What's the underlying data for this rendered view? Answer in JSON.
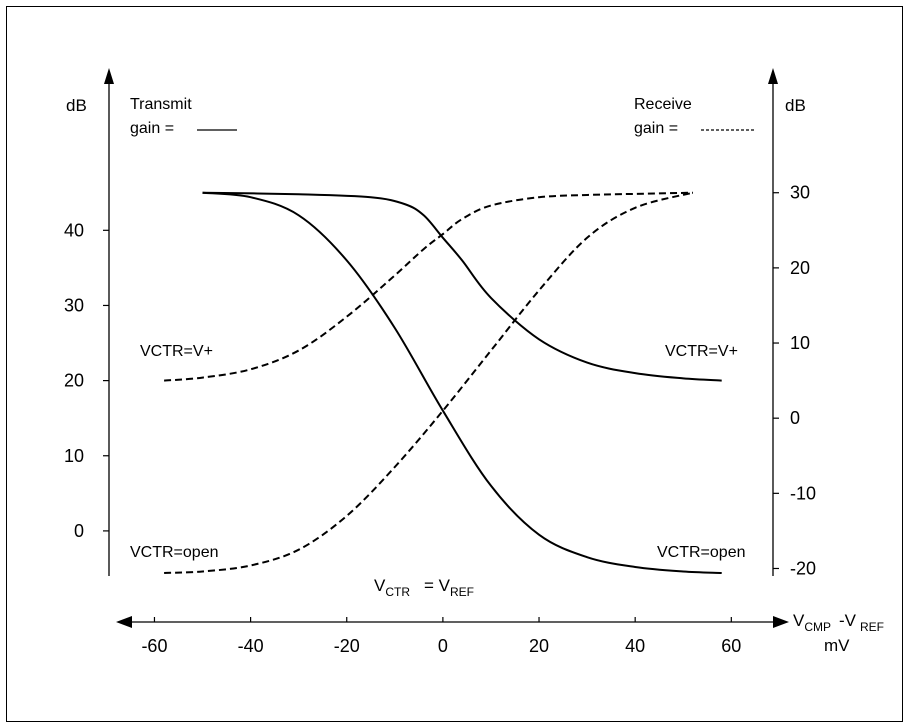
{
  "chart_data": {
    "type": "line",
    "title": "",
    "left_axis": {
      "unit_label": "dB",
      "ylim": [
        -6,
        60
      ],
      "ticks": [
        "0",
        "10",
        "20",
        "30",
        "40"
      ],
      "tick_values": [
        0,
        10,
        20,
        30,
        40
      ]
    },
    "right_axis": {
      "unit_label": "dB",
      "ylim": [
        -21,
        45
      ],
      "ticks": [
        "30",
        "20",
        "10",
        "0",
        "-10",
        "-20"
      ],
      "tick_values": [
        30,
        20,
        10,
        0,
        -10,
        -20
      ]
    },
    "x_axis": {
      "label_main": "V",
      "label_main_sub": "CMP",
      "label_minus": "-V",
      "label_minus_sub": "REF",
      "label_unit": "mV",
      "xlim": [
        -68,
        72
      ],
      "ticks": [
        "-60",
        "-40",
        "-20",
        "0",
        "20",
        "40",
        "60"
      ],
      "tick_values": [
        -60,
        -40,
        -20,
        0,
        20,
        40,
        60
      ]
    },
    "legend": {
      "transmit_line1": "Transmit",
      "transmit_line2": "gain =",
      "receive_line1": "Receive",
      "receive_line2": "gain ="
    },
    "annotations": {
      "vctr_vplus_left": "VCTR=V+",
      "vctr_vplus_right": "VCTR=V+",
      "vctr_open_left": "VCTR=open",
      "vctr_open_right": "VCTR=open",
      "center_v": "V",
      "center_v_sub": "CTR",
      "center_eq": "= V",
      "center_ref_sub": "REF"
    },
    "series": [
      {
        "style": "solid",
        "x": [
          -50,
          -40,
          -30,
          -20,
          -10,
          0,
          10,
          20,
          30,
          40,
          50,
          58
        ],
        "y": [
          45,
          44.4,
          42,
          36,
          27,
          16,
          6,
          -0.5,
          -3.5,
          -4.8,
          -5.4,
          -5.6
        ]
      },
      {
        "style": "solid",
        "x": [
          -50,
          -30,
          -15,
          -8,
          -4,
          0,
          4,
          10,
          20,
          30,
          40,
          50,
          58
        ],
        "y": [
          45,
          44.8,
          44.4,
          43.5,
          42,
          39,
          36,
          31,
          25.5,
          22.4,
          21,
          20.3,
          20
        ]
      },
      {
        "style": "dashed",
        "x": [
          -58,
          -50,
          -40,
          -30,
          -20,
          -10,
          0,
          10,
          20,
          30,
          40,
          52
        ],
        "y": [
          -5.6,
          -5.4,
          -4.6,
          -2.5,
          2,
          8.5,
          16,
          24,
          32,
          39,
          43,
          45
        ]
      },
      {
        "style": "dashed",
        "x": [
          -58,
          -50,
          -40,
          -30,
          -20,
          -10,
          -4,
          0,
          4,
          10,
          20,
          30,
          40,
          52
        ],
        "y": [
          20,
          20.4,
          21.5,
          24,
          28.5,
          34,
          37.5,
          39.5,
          41.5,
          43.3,
          44.4,
          44.7,
          44.85,
          45
        ]
      }
    ]
  }
}
